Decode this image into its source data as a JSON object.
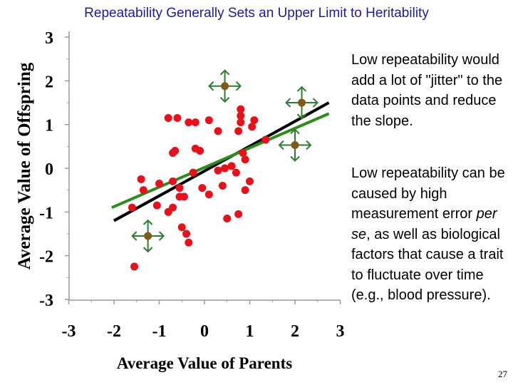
{
  "slide": {
    "title": "Repeatability Generally Sets an Upper Limit to Heritability",
    "note1": "Low repeatability would add a lot of \"jitter\" to the data points and reduce the slope.",
    "note2_part1": "Low repeatability can be caused by high measurement error ",
    "note2_italic": "per se",
    "note2_part2": ", as well as biological factors that cause a trait to fluctuate over time (e.g., blood pressure).",
    "page_number": "27"
  },
  "colors": {
    "title": "#1a1aa6",
    "points": "#e8101a",
    "highlighted_points": "#7f5a1c",
    "arrows": "#2e7d32",
    "black_line": "#000000",
    "green_line": "#2e8b1e"
  },
  "icons": [
    "double-headed-arrow-icon"
  ],
  "chart_data": {
    "type": "scatter",
    "title": "",
    "xlabel": "Average Value of Parents",
    "ylabel": "Average Value of Offspring",
    "xlim": [
      -3,
      3
    ],
    "ylim": [
      -3,
      3
    ],
    "xticks": [
      -3,
      -2,
      -1,
      0,
      1,
      2,
      3
    ],
    "yticks": [
      -3,
      -2,
      -1,
      0,
      1,
      2,
      3
    ],
    "grid": false,
    "points": [
      {
        "x": -1.55,
        "y": -2.25
      },
      {
        "x": -1.6,
        "y": -0.9
      },
      {
        "x": -1.4,
        "y": -0.25
      },
      {
        "x": -1.35,
        "y": -0.5
      },
      {
        "x": -1.05,
        "y": -0.85
      },
      {
        "x": -1.0,
        "y": -0.35
      },
      {
        "x": -0.8,
        "y": -1.0
      },
      {
        "x": -0.7,
        "y": -0.9
      },
      {
        "x": -0.7,
        "y": -0.3
      },
      {
        "x": -0.7,
        "y": 0.35
      },
      {
        "x": -0.65,
        "y": 0.4
      },
      {
        "x": -0.8,
        "y": 1.15
      },
      {
        "x": -0.6,
        "y": 1.15
      },
      {
        "x": -0.55,
        "y": -0.65
      },
      {
        "x": -0.55,
        "y": -0.45
      },
      {
        "x": -0.45,
        "y": -0.65
      },
      {
        "x": -0.5,
        "y": -1.35
      },
      {
        "x": -0.4,
        "y": -1.5
      },
      {
        "x": -0.35,
        "y": -1.7
      },
      {
        "x": -0.35,
        "y": 1.05
      },
      {
        "x": -0.2,
        "y": 1.05
      },
      {
        "x": -0.2,
        "y": 0.45
      },
      {
        "x": -0.1,
        "y": 0.4
      },
      {
        "x": -0.25,
        "y": -0.1
      },
      {
        "x": -0.05,
        "y": -0.45
      },
      {
        "x": 0.1,
        "y": -0.6
      },
      {
        "x": 0.1,
        "y": 1.1
      },
      {
        "x": 0.3,
        "y": 0.85
      },
      {
        "x": 0.3,
        "y": -0.05
      },
      {
        "x": 0.4,
        "y": -0.4
      },
      {
        "x": 0.45,
        "y": 0.0
      },
      {
        "x": 0.6,
        "y": 0.05
      },
      {
        "x": 0.7,
        "y": -0.1
      },
      {
        "x": 0.5,
        "y": -1.15
      },
      {
        "x": 0.75,
        "y": -1.05
      },
      {
        "x": 0.75,
        "y": 0.85
      },
      {
        "x": 0.8,
        "y": 1.05
      },
      {
        "x": 0.8,
        "y": 1.2
      },
      {
        "x": 0.8,
        "y": 1.35
      },
      {
        "x": 0.85,
        "y": 0.35
      },
      {
        "x": 0.9,
        "y": 0.2
      },
      {
        "x": 0.9,
        "y": -0.5
      },
      {
        "x": 1.0,
        "y": -0.3
      },
      {
        "x": 1.05,
        "y": 0.95
      },
      {
        "x": 1.1,
        "y": 1.1
      },
      {
        "x": 1.35,
        "y": 0.65
      }
    ],
    "highlighted_points": [
      {
        "x": 0.45,
        "y": 1.88
      },
      {
        "x": 2.15,
        "y": 1.5
      },
      {
        "x": 2.0,
        "y": 0.53
      },
      {
        "x": -1.25,
        "y": -1.55
      }
    ],
    "lines": [
      {
        "name": "",
        "color": "black",
        "x": [
          -2.0,
          2.75
        ],
        "y": [
          -1.2,
          1.5
        ]
      },
      {
        "name": "",
        "color": "green",
        "x": [
          -2.05,
          2.75
        ],
        "y": [
          -0.9,
          1.25
        ]
      }
    ]
  }
}
